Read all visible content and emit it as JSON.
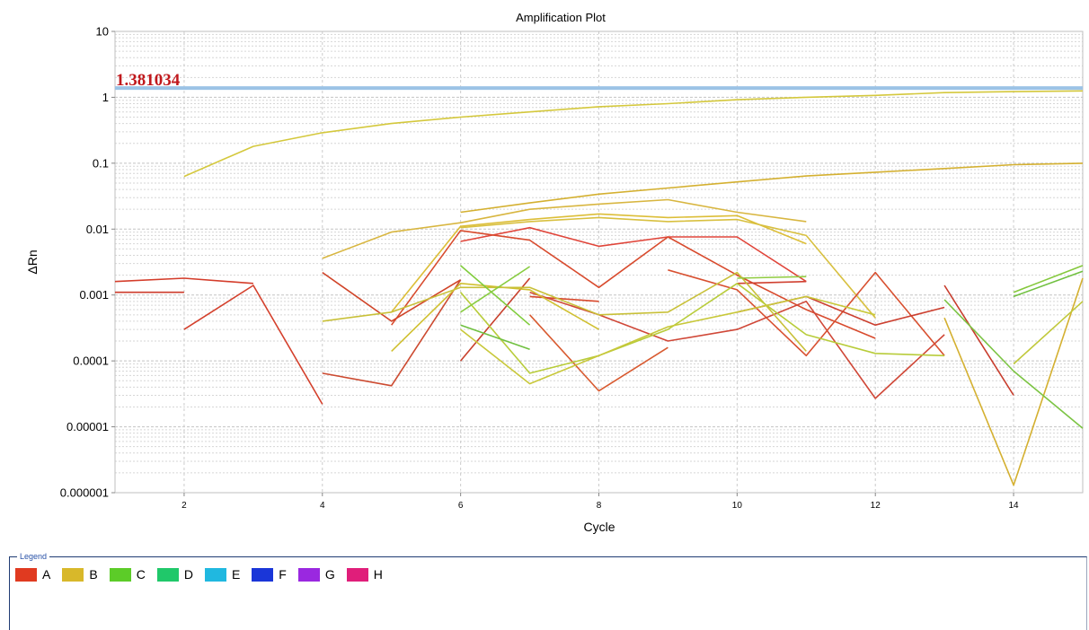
{
  "chart_data": {
    "type": "line",
    "title": "Amplification Plot",
    "xlabel": "Cycle",
    "ylabel": "ΔRn",
    "y_scale": "log",
    "xlim": [
      1,
      15
    ],
    "ylim": [
      1e-06,
      10
    ],
    "x_ticks": [
      2,
      4,
      6,
      8,
      10,
      12,
      14
    ],
    "y_ticks": [
      {
        "value": 10,
        "label": "10"
      },
      {
        "value": 1,
        "label": "1"
      },
      {
        "value": 0.1,
        "label": "0.1"
      },
      {
        "value": 0.01,
        "label": "0.01"
      },
      {
        "value": 0.001,
        "label": "0.001"
      },
      {
        "value": 0.0001,
        "label": "0.0001"
      },
      {
        "value": 1e-05,
        "label": "0.00001"
      },
      {
        "value": 1e-06,
        "label": "0.000001"
      }
    ],
    "grid": true,
    "threshold": {
      "value": 1.381034,
      "label": "1.381034",
      "color": "#9cc3e6"
    },
    "series": [
      {
        "color": "#d4c83c",
        "points": [
          [
            2,
            0.063
          ],
          [
            3,
            0.18
          ],
          [
            4,
            0.29
          ],
          [
            5,
            0.4
          ],
          [
            6,
            0.5
          ],
          [
            7,
            0.6
          ],
          [
            8,
            0.72
          ],
          [
            9,
            0.8
          ],
          [
            10,
            0.92
          ],
          [
            11,
            1.0
          ],
          [
            12,
            1.07
          ],
          [
            13,
            1.18
          ],
          [
            14,
            1.22
          ],
          [
            15,
            1.25
          ]
        ]
      },
      {
        "color": "#d4b030",
        "points": [
          [
            6,
            0.018
          ],
          [
            7,
            0.025
          ],
          [
            8,
            0.034
          ],
          [
            9,
            0.042
          ],
          [
            10,
            0.052
          ],
          [
            11,
            0.064
          ],
          [
            12,
            0.073
          ],
          [
            13,
            0.083
          ],
          [
            14,
            0.095
          ],
          [
            15,
            0.1
          ]
        ]
      },
      {
        "color": "#d8b640",
        "points": [
          [
            4,
            0.0036
          ],
          [
            5,
            0.009
          ],
          [
            6,
            0.0125
          ],
          [
            7,
            0.02
          ],
          [
            8,
            0.024
          ],
          [
            9,
            0.028
          ],
          [
            10,
            0.018
          ],
          [
            11,
            0.013
          ]
        ]
      },
      {
        "color": "#dcbe38",
        "points": [
          [
            5,
            0.00055
          ],
          [
            6,
            0.011
          ],
          [
            7,
            0.014
          ],
          [
            8,
            0.017
          ],
          [
            9,
            0.015
          ],
          [
            10,
            0.016
          ],
          [
            11,
            0.006
          ]
        ]
      },
      {
        "color": "#d8c040",
        "points": [
          [
            6,
            0.0105
          ],
          [
            7,
            0.013
          ],
          [
            8,
            0.015
          ],
          [
            9,
            0.013
          ],
          [
            10,
            0.014
          ],
          [
            11,
            0.008
          ],
          [
            12,
            0.00045
          ]
        ]
      },
      {
        "color": "#e0453a",
        "points": [
          [
            6,
            0.0065
          ],
          [
            7,
            0.0105
          ],
          [
            8,
            0.0055
          ],
          [
            9,
            0.0076
          ],
          [
            10,
            0.0076
          ],
          [
            11,
            0.0016
          ]
        ]
      },
      {
        "color": "#d84b2e",
        "points": [
          [
            5,
            0.00035
          ],
          [
            6,
            0.0095
          ],
          [
            7,
            0.0068
          ],
          [
            8,
            0.0013
          ],
          [
            9,
            0.0076
          ],
          [
            10,
            0.002
          ],
          [
            11,
            0.0006
          ],
          [
            12,
            0.00022
          ]
        ]
      },
      {
        "color": "#d43c2a",
        "points": [
          [
            1,
            0.0016
          ],
          [
            2,
            0.0018
          ],
          [
            3,
            0.0015
          ]
        ]
      },
      {
        "color": "#cc3a2a",
        "points": [
          [
            1,
            0.0011
          ],
          [
            2,
            0.0011
          ]
        ]
      },
      {
        "color": "#d4402c",
        "points": [
          [
            2,
            0.0003
          ],
          [
            3,
            0.0014
          ],
          [
            4,
            2.2e-05
          ]
        ]
      },
      {
        "color": "#d04428",
        "points": [
          [
            4,
            0.0022
          ],
          [
            5,
            0.0004
          ],
          [
            6,
            0.0017
          ]
        ]
      },
      {
        "color": "#cc4a30",
        "points": [
          [
            4,
            6.5e-05
          ],
          [
            5,
            4.2e-05
          ],
          [
            6,
            0.0017
          ]
        ]
      },
      {
        "color": "#d85a30",
        "points": [
          [
            7,
            0.0005
          ],
          [
            8,
            3.5e-05
          ],
          [
            9,
            0.00016
          ]
        ]
      },
      {
        "color": "#c8402c",
        "points": [
          [
            6,
            0.0001
          ],
          [
            7,
            0.0018
          ]
        ]
      },
      {
        "color": "#d8482c",
        "points": [
          [
            7,
            0.00095
          ],
          [
            8,
            0.0008
          ]
        ]
      },
      {
        "color": "#d04838",
        "points": [
          [
            7,
            0.0011
          ],
          [
            8,
            0.0005
          ],
          [
            9,
            0.0002
          ],
          [
            10,
            0.0003
          ],
          [
            11,
            0.0008
          ],
          [
            12,
            2.7e-05
          ],
          [
            13,
            0.00025
          ]
        ]
      },
      {
        "color": "#d85030",
        "points": [
          [
            9,
            0.0024
          ],
          [
            10,
            0.0012
          ],
          [
            11,
            0.00012
          ],
          [
            12,
            0.0022
          ],
          [
            13,
            0.00012
          ]
        ]
      },
      {
        "color": "#cc4030",
        "points": [
          [
            10,
            0.00055
          ],
          [
            11,
            0.00095
          ],
          [
            12,
            0.00035
          ],
          [
            13,
            0.00065
          ]
        ]
      },
      {
        "color": "#d04030",
        "points": [
          [
            10,
            0.0015
          ],
          [
            11,
            0.0016
          ]
        ]
      },
      {
        "color": "#c83c2c",
        "points": [
          [
            13,
            0.0014
          ],
          [
            14,
            3e-05
          ]
        ]
      },
      {
        "color": "#d0c030",
        "points": [
          [
            5,
            0.00014
          ],
          [
            6,
            0.0015
          ],
          [
            7,
            0.0012
          ],
          [
            8,
            0.0003
          ]
        ]
      },
      {
        "color": "#c8c038",
        "points": [
          [
            4,
            0.0004
          ],
          [
            5,
            0.00055
          ],
          [
            6,
            0.0013
          ],
          [
            7,
            0.0013
          ],
          [
            8,
            0.0005
          ],
          [
            9,
            0.00055
          ],
          [
            10,
            0.0022
          ],
          [
            11,
            0.00014
          ]
        ]
      },
      {
        "color": "#b8cc3a",
        "points": [
          [
            6,
            0.0011
          ],
          [
            7,
            6.5e-05
          ],
          [
            8,
            0.00012
          ],
          [
            9,
            0.0003
          ],
          [
            10,
            0.0015
          ],
          [
            11,
            0.00025
          ],
          [
            12,
            0.00013
          ],
          [
            13,
            0.00012
          ]
        ]
      },
      {
        "color": "#c8c83a",
        "points": [
          [
            6,
            0.0003
          ],
          [
            7,
            4.5e-05
          ],
          [
            8,
            0.00012
          ],
          [
            9,
            0.00033
          ],
          [
            10,
            0.00055
          ],
          [
            11,
            0.00095
          ],
          [
            12,
            0.0005
          ]
        ]
      },
      {
        "color": "#d4b030",
        "points": [
          [
            13,
            0.00045
          ],
          [
            14,
            1.3e-06
          ],
          [
            15,
            0.0018
          ]
        ]
      },
      {
        "color": "#c0c83a",
        "points": [
          [
            14,
            9e-05
          ],
          [
            15,
            0.0008
          ]
        ]
      },
      {
        "color": "#80cc3c",
        "points": [
          [
            6,
            0.0028
          ],
          [
            7,
            0.00035
          ]
        ]
      },
      {
        "color": "#88cc40",
        "points": [
          [
            6,
            0.00055
          ],
          [
            7,
            0.0027
          ]
        ]
      },
      {
        "color": "#70c040",
        "points": [
          [
            6,
            0.00035
          ],
          [
            7,
            0.00015
          ]
        ]
      },
      {
        "color": "#90cc40",
        "points": [
          [
            10,
            0.0018
          ],
          [
            11,
            0.0019
          ]
        ]
      },
      {
        "color": "#7cc444",
        "points": [
          [
            13,
            0.00085
          ],
          [
            14,
            7e-05
          ],
          [
            15,
            9.5e-06
          ]
        ]
      },
      {
        "color": "#84c83c",
        "points": [
          [
            14,
            0.0011
          ],
          [
            15,
            0.0028
          ]
        ]
      },
      {
        "color": "#70c040",
        "points": [
          [
            14,
            0.00095
          ],
          [
            15,
            0.0023
          ]
        ]
      }
    ],
    "legend": {
      "caption": "Legend",
      "placement": "bottom",
      "items": [
        {
          "label": "A",
          "color": "#e03a20"
        },
        {
          "label": "B",
          "color": "#d8b82a"
        },
        {
          "label": "C",
          "color": "#5ccc28"
        },
        {
          "label": "D",
          "color": "#20c86a"
        },
        {
          "label": "E",
          "color": "#20b8e0"
        },
        {
          "label": "F",
          "color": "#1a36d8"
        },
        {
          "label": "G",
          "color": "#9a28e0"
        },
        {
          "label": "H",
          "color": "#e01e7a"
        }
      ]
    }
  }
}
